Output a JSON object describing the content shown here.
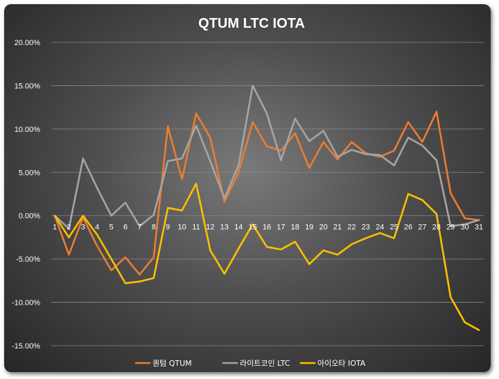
{
  "chart_data": {
    "type": "line",
    "title": "QTUM  LTC  IOTA",
    "xlabel": "",
    "ylabel": "",
    "ylim": [
      -15,
      20
    ],
    "yticks": [
      "20.00%",
      "15.00%",
      "10.00%",
      "5.00%",
      "0.00%",
      "-5.00%",
      "-10.00%",
      "-15.00%"
    ],
    "ytick_values": [
      20,
      15,
      10,
      5,
      0,
      -5,
      -10,
      -15
    ],
    "categories": [
      "1",
      "2",
      "3",
      "4",
      "5",
      "6",
      "7",
      "8",
      "9",
      "10",
      "11",
      "12",
      "13",
      "14",
      "15",
      "16",
      "17",
      "18",
      "19",
      "20",
      "21",
      "22",
      "23",
      "24",
      "25",
      "26",
      "27",
      "28",
      "29",
      "30",
      "31"
    ],
    "grid": "horizontal",
    "legend_position": "bottom",
    "series": [
      {
        "name": "퀀텀 QTUM",
        "color": "#ED7D31",
        "values": [
          0.0,
          -4.5,
          -0.2,
          -3.5,
          -6.3,
          -4.8,
          -6.8,
          -4.8,
          10.3,
          4.2,
          11.8,
          9.0,
          1.6,
          5.0,
          10.8,
          8.0,
          7.5,
          9.5,
          5.5,
          8.5,
          6.5,
          8.5,
          7.2,
          6.8,
          7.5,
          10.8,
          8.5,
          12.0,
          2.6,
          -0.3,
          -0.5
        ]
      },
      {
        "name": "라이트코인 LTC",
        "color": "#A5A5A5",
        "values": [
          0.0,
          -1.5,
          6.6,
          3.2,
          0.0,
          1.5,
          -1.2,
          0.1,
          6.3,
          6.6,
          10.4,
          6.3,
          2.0,
          5.8,
          15.0,
          11.8,
          6.4,
          11.2,
          8.6,
          9.8,
          6.8,
          7.6,
          7.1,
          7.0,
          5.8,
          9.0,
          8.1,
          6.4,
          -1.2,
          -1.0,
          -0.5
        ]
      },
      {
        "name": "아이오타 IOTA",
        "color": "#FFC000",
        "values": [
          0.0,
          -2.5,
          0.0,
          -2.2,
          -5.0,
          -7.8,
          -7.6,
          -7.2,
          0.9,
          0.6,
          3.7,
          -4.0,
          -6.7,
          -3.8,
          -1.0,
          -3.6,
          -3.9,
          -3.0,
          -5.6,
          -4.0,
          -4.5,
          -3.3,
          -2.6,
          -2.0,
          -2.6,
          2.5,
          1.8,
          0.2,
          -9.4,
          -12.3,
          -13.2
        ]
      }
    ]
  }
}
